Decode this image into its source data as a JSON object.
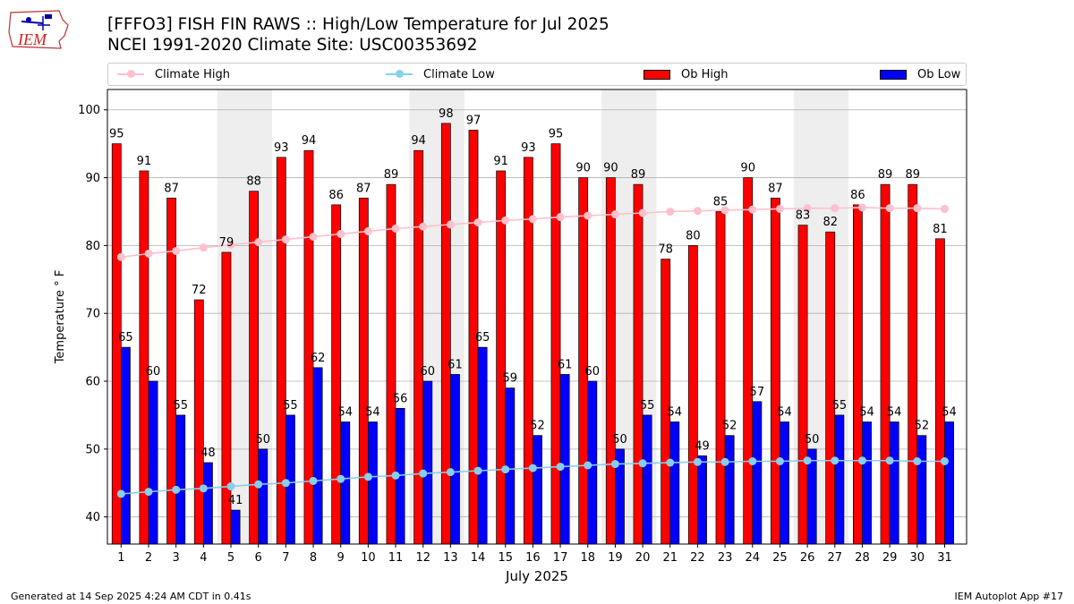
{
  "header": {
    "title_line1": "[FFFO3] FISH FIN RAWS :: High/Low Temperature for Jul 2025",
    "title_line2": "NCEI 1991-2020 Climate Site: USC00353692",
    "logo_text": "IEM"
  },
  "legend": {
    "climate_high": "Climate High",
    "climate_low": "Climate Low",
    "ob_high": "Ob High",
    "ob_low": "Ob Low"
  },
  "colors": {
    "ob_high": "#ff0000",
    "ob_low": "#0000ff",
    "climate_high": "#ffc0cb",
    "climate_low": "#87ceeb",
    "weekend_shade": "#eeeeee",
    "grid": "#b0b0b0"
  },
  "footer": {
    "left": "Generated at 14 Sep 2025 4:24 AM CDT in 0.41s",
    "right": "IEM Autoplot App #17"
  },
  "chart_data": {
    "type": "bar",
    "xlabel": "July 2025",
    "ylabel": "Temperature ° F",
    "ylim": [
      36,
      103
    ],
    "yticks": [
      40,
      50,
      60,
      70,
      80,
      90,
      100
    ],
    "grid": "horizontal",
    "categories": [
      "1",
      "2",
      "3",
      "4",
      "5",
      "6",
      "7",
      "8",
      "9",
      "10",
      "11",
      "12",
      "13",
      "14",
      "15",
      "16",
      "17",
      "18",
      "19",
      "20",
      "21",
      "22",
      "23",
      "24",
      "25",
      "26",
      "27",
      "28",
      "29",
      "30",
      "31"
    ],
    "shaded_days": [
      [
        5,
        6
      ],
      [
        12,
        13
      ],
      [
        19,
        20
      ],
      [
        26,
        27
      ]
    ],
    "series": [
      {
        "name": "Ob High",
        "kind": "bar",
        "values": [
          95,
          91,
          87,
          72,
          79,
          88,
          93,
          94,
          86,
          87,
          89,
          94,
          98,
          97,
          91,
          93,
          95,
          90,
          90,
          89,
          78,
          80,
          85,
          90,
          87,
          83,
          82,
          86,
          89,
          89,
          81
        ]
      },
      {
        "name": "Ob Low",
        "kind": "bar",
        "values": [
          65,
          60,
          55,
          48,
          41,
          50,
          55,
          62,
          54,
          54,
          56,
          60,
          61,
          65,
          59,
          52,
          61,
          60,
          50,
          55,
          54,
          49,
          52,
          57,
          54,
          50,
          55,
          54,
          54,
          52,
          54
        ]
      },
      {
        "name": "Climate High",
        "kind": "line",
        "values": [
          78.3,
          78.8,
          79.2,
          79.7,
          80.1,
          80.5,
          80.9,
          81.3,
          81.7,
          82.1,
          82.5,
          82.8,
          83.1,
          83.4,
          83.7,
          83.9,
          84.2,
          84.4,
          84.6,
          84.8,
          85.0,
          85.1,
          85.2,
          85.3,
          85.4,
          85.5,
          85.5,
          85.6,
          85.5,
          85.5,
          85.4
        ]
      },
      {
        "name": "Climate Low",
        "kind": "line",
        "values": [
          43.4,
          43.7,
          44.0,
          44.2,
          44.5,
          44.8,
          45.0,
          45.3,
          45.6,
          45.9,
          46.1,
          46.4,
          46.6,
          46.8,
          47.0,
          47.2,
          47.4,
          47.6,
          47.8,
          47.9,
          48.0,
          48.1,
          48.1,
          48.2,
          48.2,
          48.3,
          48.3,
          48.3,
          48.3,
          48.2,
          48.2
        ]
      }
    ]
  }
}
